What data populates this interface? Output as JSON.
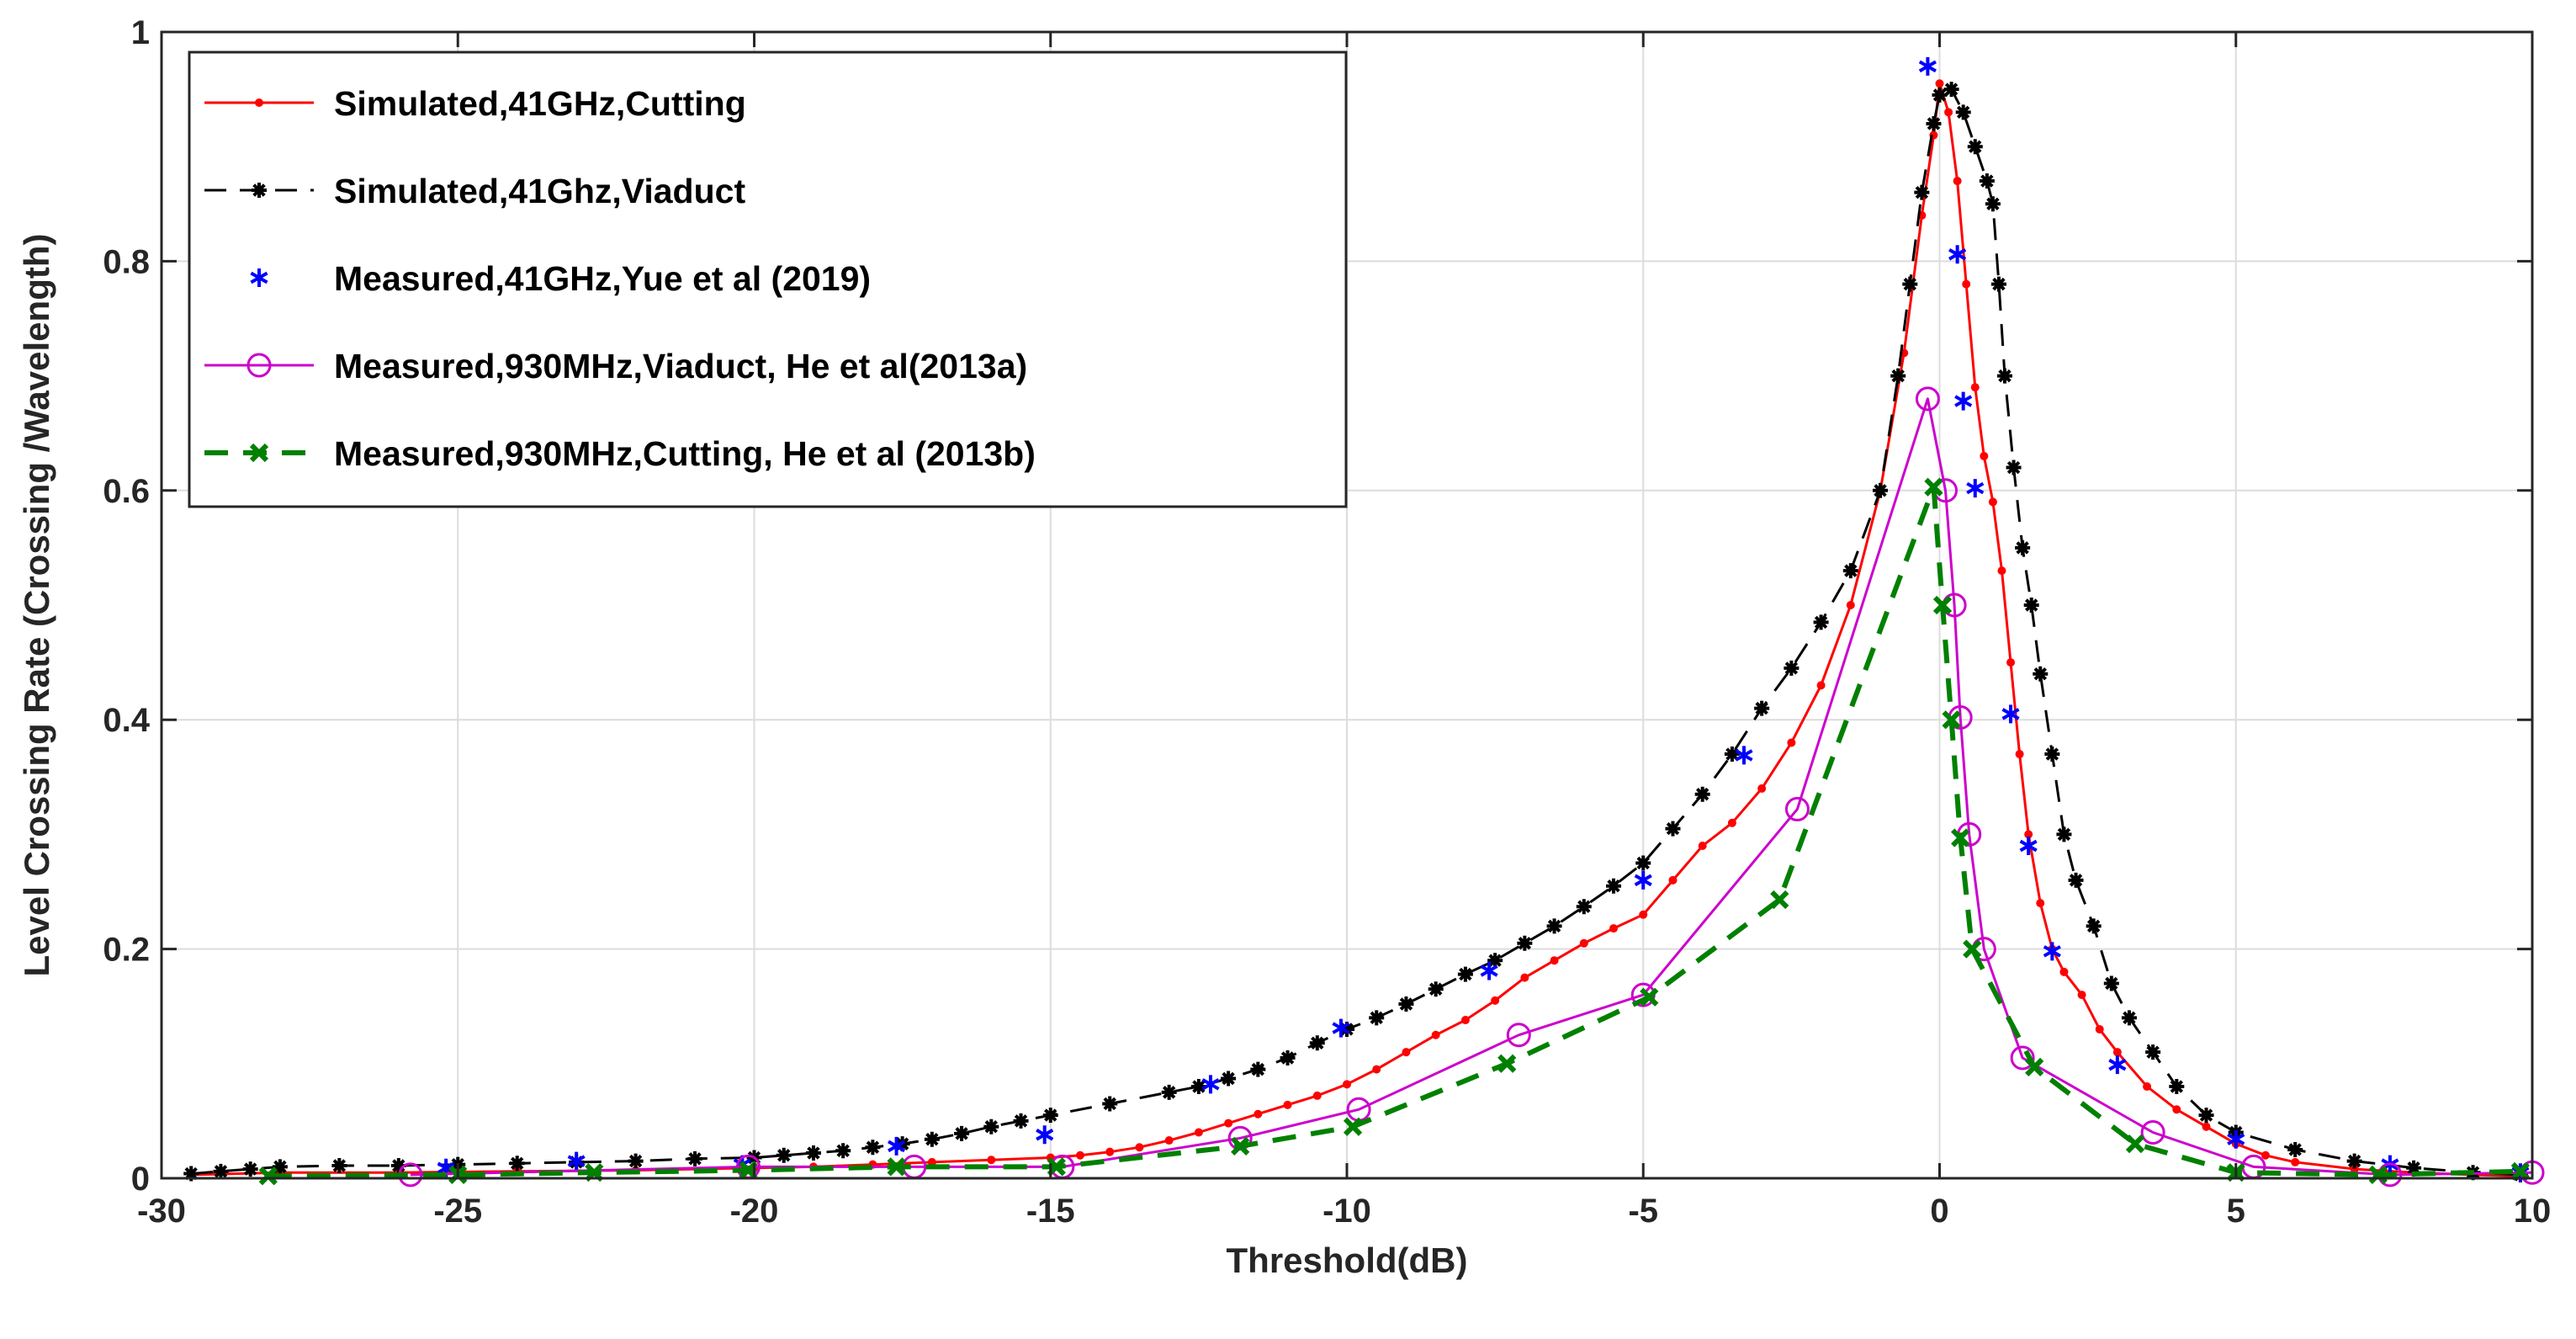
{
  "chart_data": {
    "type": "line",
    "title": "",
    "xlabel": "Threshold(dB)",
    "ylabel": "Level Crossing Rate (Crossing /Wavelength)",
    "xlim": [
      -30,
      10
    ],
    "ylim": [
      0,
      1
    ],
    "grid": true,
    "legend_position": "top-left",
    "xticks": [
      -30,
      -25,
      -20,
      -15,
      -10,
      -5,
      0,
      5,
      10
    ],
    "xtick_labels": [
      "-30",
      "-25",
      "-20",
      "-15",
      "-10",
      "-5",
      "0",
      "5",
      "10"
    ],
    "yticks": [
      0,
      0.2,
      0.4,
      0.6,
      0.8,
      1
    ],
    "ytick_labels": [
      "0",
      "0.2",
      "0.4",
      "0.6",
      "0.8",
      "1"
    ],
    "series": [
      {
        "name": "Simulated,41GHz,Cutting",
        "color": "#ff0000",
        "line": "solid",
        "marker": "dot",
        "x": [
          -29.5,
          -28,
          -26,
          -24,
          -22,
          -20,
          -19,
          -18,
          -17,
          -16,
          -15,
          -14.5,
          -14,
          -13.5,
          -13,
          -12.5,
          -12,
          -11.5,
          -11,
          -10.5,
          -10,
          -9.5,
          -9,
          -8.5,
          -8,
          -7.5,
          -7,
          -6.5,
          -6,
          -5.5,
          -5,
          -4.5,
          -4,
          -3.5,
          -3,
          -2.5,
          -2,
          -1.5,
          -1,
          -0.6,
          -0.3,
          -0.1,
          0,
          0.15,
          0.3,
          0.45,
          0.6,
          0.75,
          0.9,
          1.05,
          1.2,
          1.35,
          1.5,
          1.7,
          1.9,
          2.1,
          2.4,
          2.7,
          3,
          3.5,
          4,
          4.5,
          5,
          5.5,
          6,
          7,
          8,
          9,
          9.7
        ],
        "y": [
          0.003,
          0.005,
          0.005,
          0.006,
          0.007,
          0.009,
          0.01,
          0.012,
          0.014,
          0.016,
          0.018,
          0.02,
          0.023,
          0.027,
          0.033,
          0.04,
          0.048,
          0.056,
          0.064,
          0.072,
          0.082,
          0.095,
          0.11,
          0.125,
          0.138,
          0.155,
          0.175,
          0.19,
          0.205,
          0.218,
          0.23,
          0.26,
          0.29,
          0.31,
          0.34,
          0.38,
          0.43,
          0.5,
          0.6,
          0.72,
          0.84,
          0.91,
          0.955,
          0.93,
          0.87,
          0.78,
          0.69,
          0.63,
          0.59,
          0.53,
          0.45,
          0.37,
          0.3,
          0.24,
          0.2,
          0.18,
          0.16,
          0.13,
          0.11,
          0.08,
          0.06,
          0.045,
          0.03,
          0.02,
          0.014,
          0.008,
          0.005,
          0.003,
          0.002
        ]
      },
      {
        "name": "Simulated,41Ghz,Viaduct",
        "color": "#000000",
        "line": "dashed",
        "marker": "star",
        "x": [
          -29.5,
          -29,
          -28.5,
          -28,
          -27,
          -26,
          -25,
          -24,
          -23,
          -22,
          -21,
          -20,
          -19.5,
          -19,
          -18.5,
          -18,
          -17.5,
          -17,
          -16.5,
          -16,
          -15.5,
          -15,
          -14,
          -13,
          -12.5,
          -12,
          -11.5,
          -11,
          -10.5,
          -10,
          -9.5,
          -9,
          -8.5,
          -8,
          -7.5,
          -7,
          -6.5,
          -6,
          -5.5,
          -5,
          -4.5,
          -4,
          -3.5,
          -3,
          -2.5,
          -2,
          -1.5,
          -1,
          -0.7,
          -0.5,
          -0.3,
          -0.1,
          0,
          0.2,
          0.4,
          0.6,
          0.8,
          0.9,
          1.0,
          1.1,
          1.25,
          1.4,
          1.55,
          1.7,
          1.9,
          2.1,
          2.3,
          2.6,
          2.9,
          3.2,
          3.6,
          4,
          4.5,
          5,
          6,
          7,
          8,
          9,
          9.8
        ],
        "y": [
          0.004,
          0.006,
          0.008,
          0.01,
          0.011,
          0.011,
          0.012,
          0.013,
          0.014,
          0.015,
          0.017,
          0.018,
          0.02,
          0.022,
          0.024,
          0.027,
          0.03,
          0.034,
          0.039,
          0.045,
          0.05,
          0.055,
          0.065,
          0.075,
          0.08,
          0.087,
          0.095,
          0.105,
          0.118,
          0.13,
          0.14,
          0.152,
          0.165,
          0.178,
          0.19,
          0.205,
          0.22,
          0.237,
          0.255,
          0.275,
          0.305,
          0.335,
          0.37,
          0.41,
          0.445,
          0.485,
          0.53,
          0.6,
          0.7,
          0.78,
          0.86,
          0.92,
          0.945,
          0.95,
          0.93,
          0.9,
          0.87,
          0.85,
          0.78,
          0.7,
          0.62,
          0.55,
          0.5,
          0.44,
          0.37,
          0.3,
          0.26,
          0.22,
          0.17,
          0.14,
          0.11,
          0.08,
          0.055,
          0.04,
          0.025,
          0.015,
          0.009,
          0.005,
          0.003
        ]
      },
      {
        "name": "Measured,41GHz,Yue et al (2019)",
        "color": "#0000ff",
        "line": "none",
        "marker": "asterisk",
        "x": [
          -25.2,
          -23,
          -20.2,
          -17.6,
          -15.1,
          -12.3,
          -10.1,
          -7.6,
          -5,
          -3.3,
          -0.2,
          0.3,
          0.4,
          0.6,
          1.2,
          1.5,
          1.9,
          3,
          5,
          7.6,
          9.8
        ],
        "y": [
          0.009,
          0.015,
          0.012,
          0.028,
          0.038,
          0.082,
          0.131,
          0.181,
          0.26,
          0.369,
          0.97,
          0.806,
          0.678,
          0.602,
          0.405,
          0.29,
          0.198,
          0.099,
          0.034,
          0.012,
          0.005
        ]
      },
      {
        "name": "Measured,930MHz,Viaduct, He et al(2013a)",
        "color": "#cc00cc",
        "line": "solid",
        "marker": "circle",
        "x": [
          -25.8,
          -20.1,
          -17.3,
          -14.8,
          -11.8,
          -9.8,
          -7.1,
          -5,
          -2.4,
          -0.2,
          0.1,
          0.25,
          0.35,
          0.5,
          0.75,
          1.4,
          3.6,
          5.3,
          7.6,
          10
        ],
        "y": [
          0.003,
          0.01,
          0.01,
          0.01,
          0.035,
          0.06,
          0.125,
          0.16,
          0.322,
          0.68,
          0.6,
          0.5,
          0.402,
          0.3,
          0.2,
          0.105,
          0.04,
          0.01,
          0.003,
          0.005
        ]
      },
      {
        "name": "Measured,930MHz,Cutting, He et al (2013b)",
        "color": "#008000",
        "line": "dashed",
        "marker": "x",
        "x": [
          -28.2,
          -25,
          -22.7,
          -20.1,
          -17.6,
          -14.9,
          -11.8,
          -9.9,
          -7.3,
          -4.9,
          -2.7,
          -0.1,
          0.05,
          0.2,
          0.35,
          0.55,
          1.6,
          3.3,
          5,
          7.4,
          9.8
        ],
        "y": [
          0.002,
          0.003,
          0.005,
          0.007,
          0.01,
          0.01,
          0.028,
          0.045,
          0.1,
          0.158,
          0.243,
          0.603,
          0.5,
          0.4,
          0.297,
          0.2,
          0.097,
          0.03,
          0.005,
          0.003,
          0.006
        ]
      }
    ]
  }
}
